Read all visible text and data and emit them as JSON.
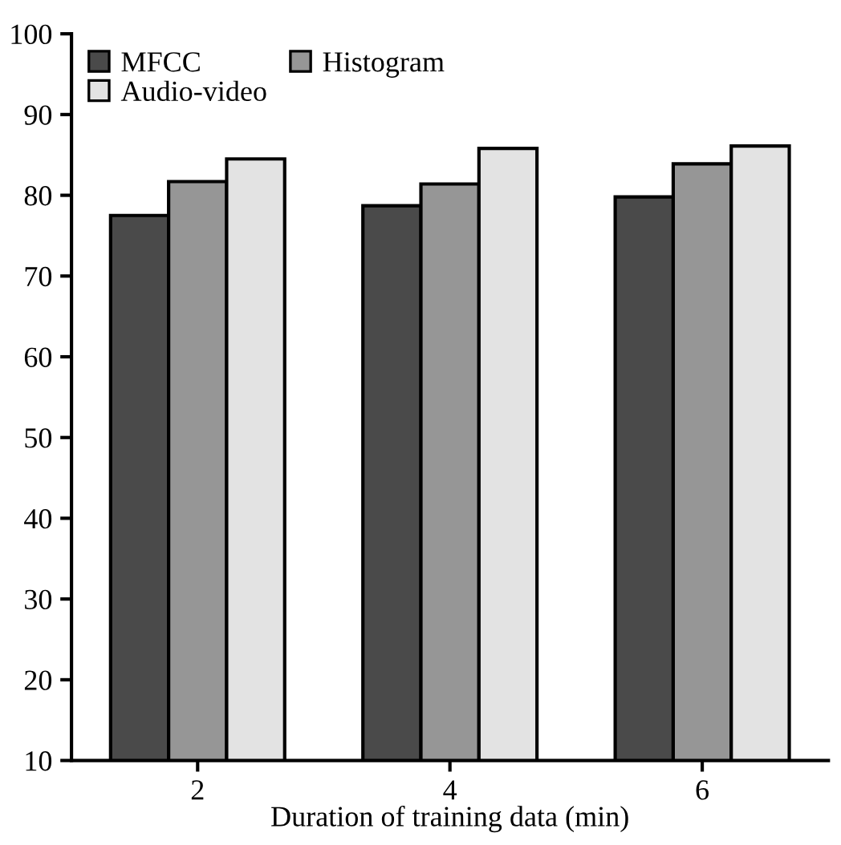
{
  "chart_data": {
    "type": "bar",
    "xlabel": "Duration of training data (min)",
    "categories": [
      "2",
      "4",
      "6"
    ],
    "series": [
      {
        "name": "MFCC",
        "color": "#4a4a4a",
        "values": [
          77.5,
          78.7,
          79.8
        ]
      },
      {
        "name": "Histogram",
        "color": "#969696",
        "values": [
          81.7,
          81.4,
          83.9
        ]
      },
      {
        "name": "Audio-video",
        "color": "#e3e3e3",
        "values": [
          84.5,
          85.8,
          86.1
        ]
      }
    ],
    "ylim": [
      10,
      100
    ],
    "yticks": [
      10,
      20,
      30,
      40,
      50,
      60,
      70,
      80,
      90,
      100
    ],
    "grid": false,
    "legend": "top left"
  }
}
